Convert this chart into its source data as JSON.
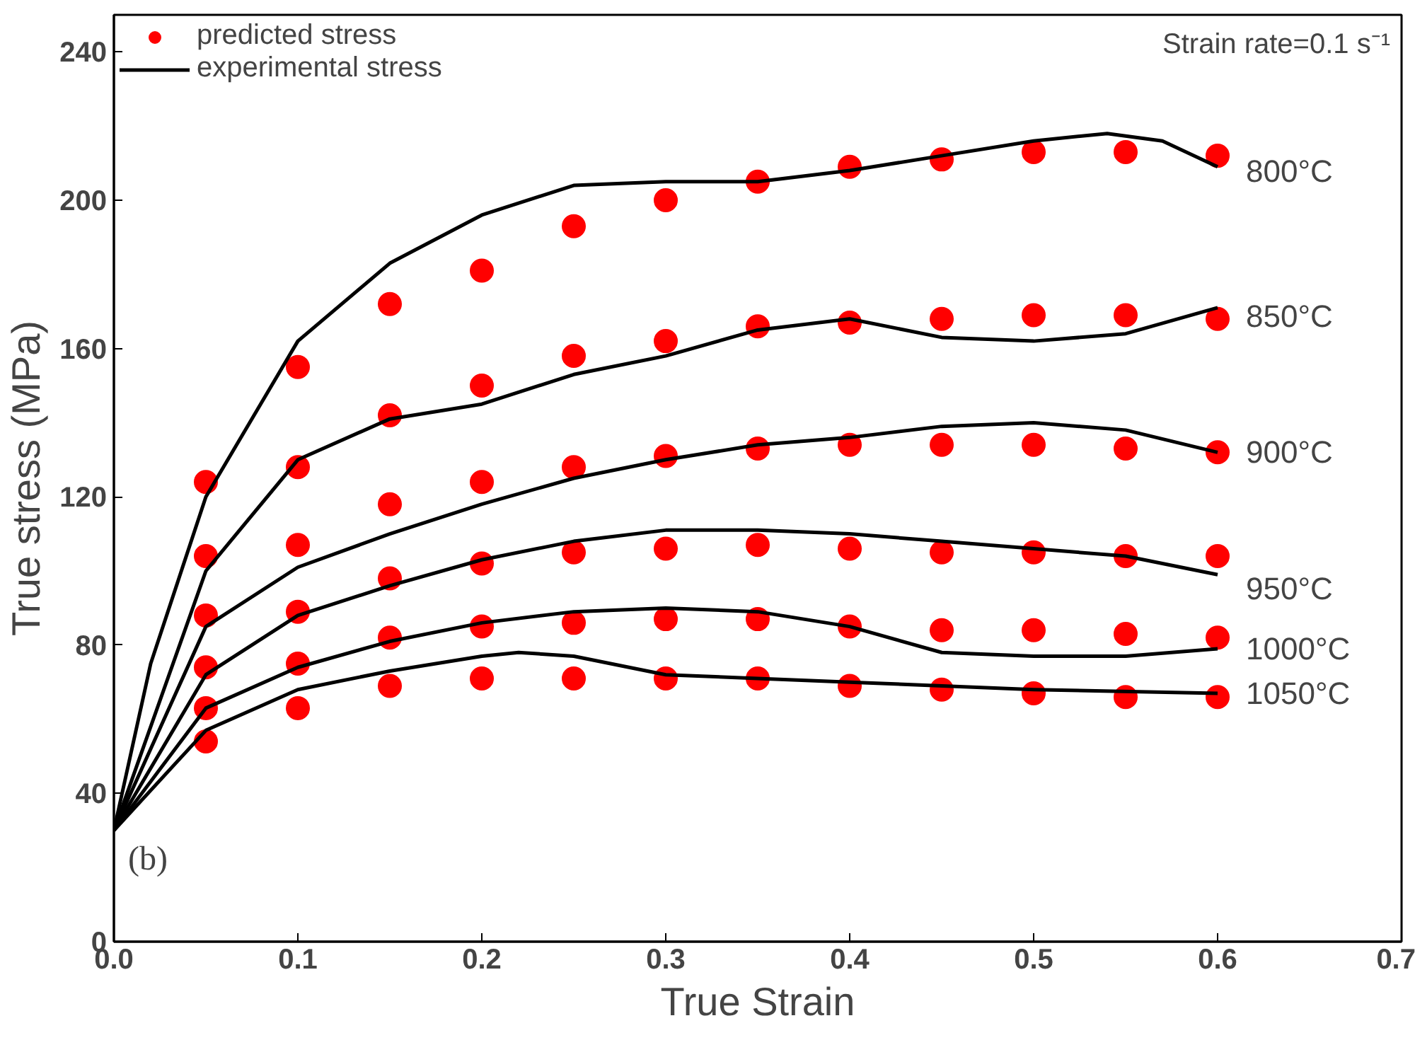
{
  "chart_data": {
    "type": "scatter",
    "xlabel": "True Strain",
    "ylabel": "True stress (MPa)",
    "xlim": [
      0,
      0.7
    ],
    "ylim": [
      0,
      250
    ],
    "xticks": [
      {
        "value": 0,
        "label": "0.0"
      },
      0.1,
      0.2,
      0.3,
      0.4,
      0.5,
      0.6,
      0.7
    ],
    "yticks": [
      0,
      40,
      80,
      120,
      160,
      200,
      240
    ],
    "grid": false,
    "legend": "top left",
    "series": [
      {
        "name": "predicted stress",
        "marker": "circle",
        "color": "#ff0000",
        "x": [
          0.05,
          0.1,
          0.15,
          0.2,
          0.25,
          0.3,
          0.35,
          0.4,
          0.45,
          0.5,
          0.55,
          0.6
        ],
        "values": [
          124,
          155,
          172,
          181,
          193,
          200,
          205,
          209,
          211,
          213,
          213,
          212
        ]
      },
      {
        "name": "experimental stress",
        "type": "line",
        "line_style": "solid",
        "color": "#000000",
        "x": [
          0,
          0.02,
          0.05,
          0.1,
          0.15,
          0.2,
          0.25,
          0.3,
          0.35,
          0.4,
          0.45,
          0.5,
          0.54,
          0.57,
          0.6
        ],
        "values": [
          30,
          75,
          120,
          162,
          183,
          196,
          204,
          205,
          205,
          208,
          212,
          216,
          218,
          216,
          209
        ]
      },
      {
        "marker": "circle",
        "color": "#ff0000",
        "x": [
          0.05,
          0.1,
          0.15,
          0.2,
          0.25,
          0.3,
          0.35,
          0.4,
          0.45,
          0.5,
          0.55,
          0.6
        ],
        "values": [
          104,
          128,
          142,
          150,
          158,
          162,
          166,
          167,
          168,
          169,
          169,
          168
        ]
      },
      {
        "type": "line",
        "line_style": "solid",
        "color": "#000000",
        "x": [
          0,
          0.05,
          0.1,
          0.15,
          0.2,
          0.25,
          0.3,
          0.35,
          0.4,
          0.45,
          0.5,
          0.55,
          0.6
        ],
        "values": [
          30,
          100,
          130,
          141,
          145,
          153,
          158,
          165,
          168,
          163,
          162,
          164,
          171
        ]
      },
      {
        "marker": "circle",
        "color": "#ff0000",
        "x": [
          0.05,
          0.1,
          0.15,
          0.2,
          0.25,
          0.3,
          0.35,
          0.4,
          0.45,
          0.5,
          0.55,
          0.6
        ],
        "values": [
          88,
          107,
          118,
          124,
          128,
          131,
          133,
          134,
          134,
          134,
          133,
          132
        ]
      },
      {
        "type": "line",
        "line_style": "solid",
        "color": "#000000",
        "x": [
          0,
          0.05,
          0.1,
          0.15,
          0.2,
          0.25,
          0.3,
          0.35,
          0.4,
          0.45,
          0.5,
          0.55,
          0.6
        ],
        "values": [
          30,
          85,
          101,
          110,
          118,
          125,
          130,
          134,
          136,
          139,
          140,
          138,
          132
        ]
      },
      {
        "marker": "circle",
        "color": "#ff0000",
        "x": [
          0.05,
          0.1,
          0.15,
          0.2,
          0.25,
          0.3,
          0.35,
          0.4,
          0.45,
          0.5,
          0.55,
          0.6
        ],
        "values": [
          74,
          89,
          98,
          102,
          105,
          106,
          107,
          106,
          105,
          105,
          104,
          104
        ]
      },
      {
        "type": "line",
        "line_style": "solid",
        "color": "#000000",
        "x": [
          0,
          0.05,
          0.1,
          0.15,
          0.2,
          0.25,
          0.3,
          0.35,
          0.4,
          0.45,
          0.5,
          0.55,
          0.6
        ],
        "values": [
          30,
          72,
          88,
          96,
          103,
          108,
          111,
          111,
          110,
          108,
          106,
          104,
          99
        ]
      },
      {
        "marker": "circle",
        "color": "#ff0000",
        "x": [
          0.05,
          0.1,
          0.15,
          0.2,
          0.25,
          0.3,
          0.35,
          0.4,
          0.45,
          0.5,
          0.55,
          0.6
        ],
        "values": [
          63,
          75,
          82,
          85,
          86,
          87,
          87,
          85,
          84,
          84,
          83,
          82
        ]
      },
      {
        "type": "line",
        "line_style": "solid",
        "color": "#000000",
        "x": [
          0,
          0.05,
          0.1,
          0.15,
          0.2,
          0.25,
          0.3,
          0.35,
          0.4,
          0.45,
          0.5,
          0.55,
          0.6
        ],
        "values": [
          30,
          63,
          74,
          81,
          86,
          89,
          90,
          89,
          85,
          78,
          77,
          77,
          79
        ]
      },
      {
        "marker": "circle",
        "color": "#ff0000",
        "x": [
          0.05,
          0.1,
          0.15,
          0.2,
          0.25,
          0.3,
          0.35,
          0.4,
          0.45,
          0.5,
          0.55,
          0.6
        ],
        "values": [
          54,
          63,
          69,
          71,
          71,
          71,
          71,
          69,
          68,
          67,
          66,
          66
        ]
      },
      {
        "type": "line",
        "line_style": "solid",
        "color": "#000000",
        "x": [
          0,
          0.05,
          0.1,
          0.15,
          0.2,
          0.22,
          0.25,
          0.3,
          0.35,
          0.4,
          0.5,
          0.6
        ],
        "values": [
          30,
          57,
          68,
          73,
          77,
          78,
          77,
          72,
          71,
          70,
          68,
          67
        ]
      }
    ],
    "annotations": [
      "Strain rate=0.1 s⁻¹",
      "(b)",
      "800°C",
      "850°C",
      "900°C",
      "950°C",
      "1000°C",
      "1050°C"
    ]
  }
}
